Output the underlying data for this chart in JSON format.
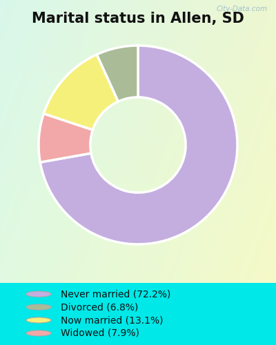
{
  "title": "Marital status in Allen, SD",
  "slices": [
    72.2,
    7.9,
    13.1,
    6.8
  ],
  "colors": [
    "#c4aee0",
    "#f2a8a8",
    "#f5f07a",
    "#aabb98"
  ],
  "legend_labels": [
    "Never married (72.2%)",
    "Divorced (6.8%)",
    "Now married (13.1%)",
    "Widowed (7.9%)"
  ],
  "legend_colors": [
    "#c4aee0",
    "#aabb98",
    "#f5f07a",
    "#f2a8a8"
  ],
  "title_fontsize": 15,
  "bg_color_outer": "#00e8e8",
  "watermark": "City-Data.com",
  "start_angle": 90,
  "donut_width": 0.52
}
